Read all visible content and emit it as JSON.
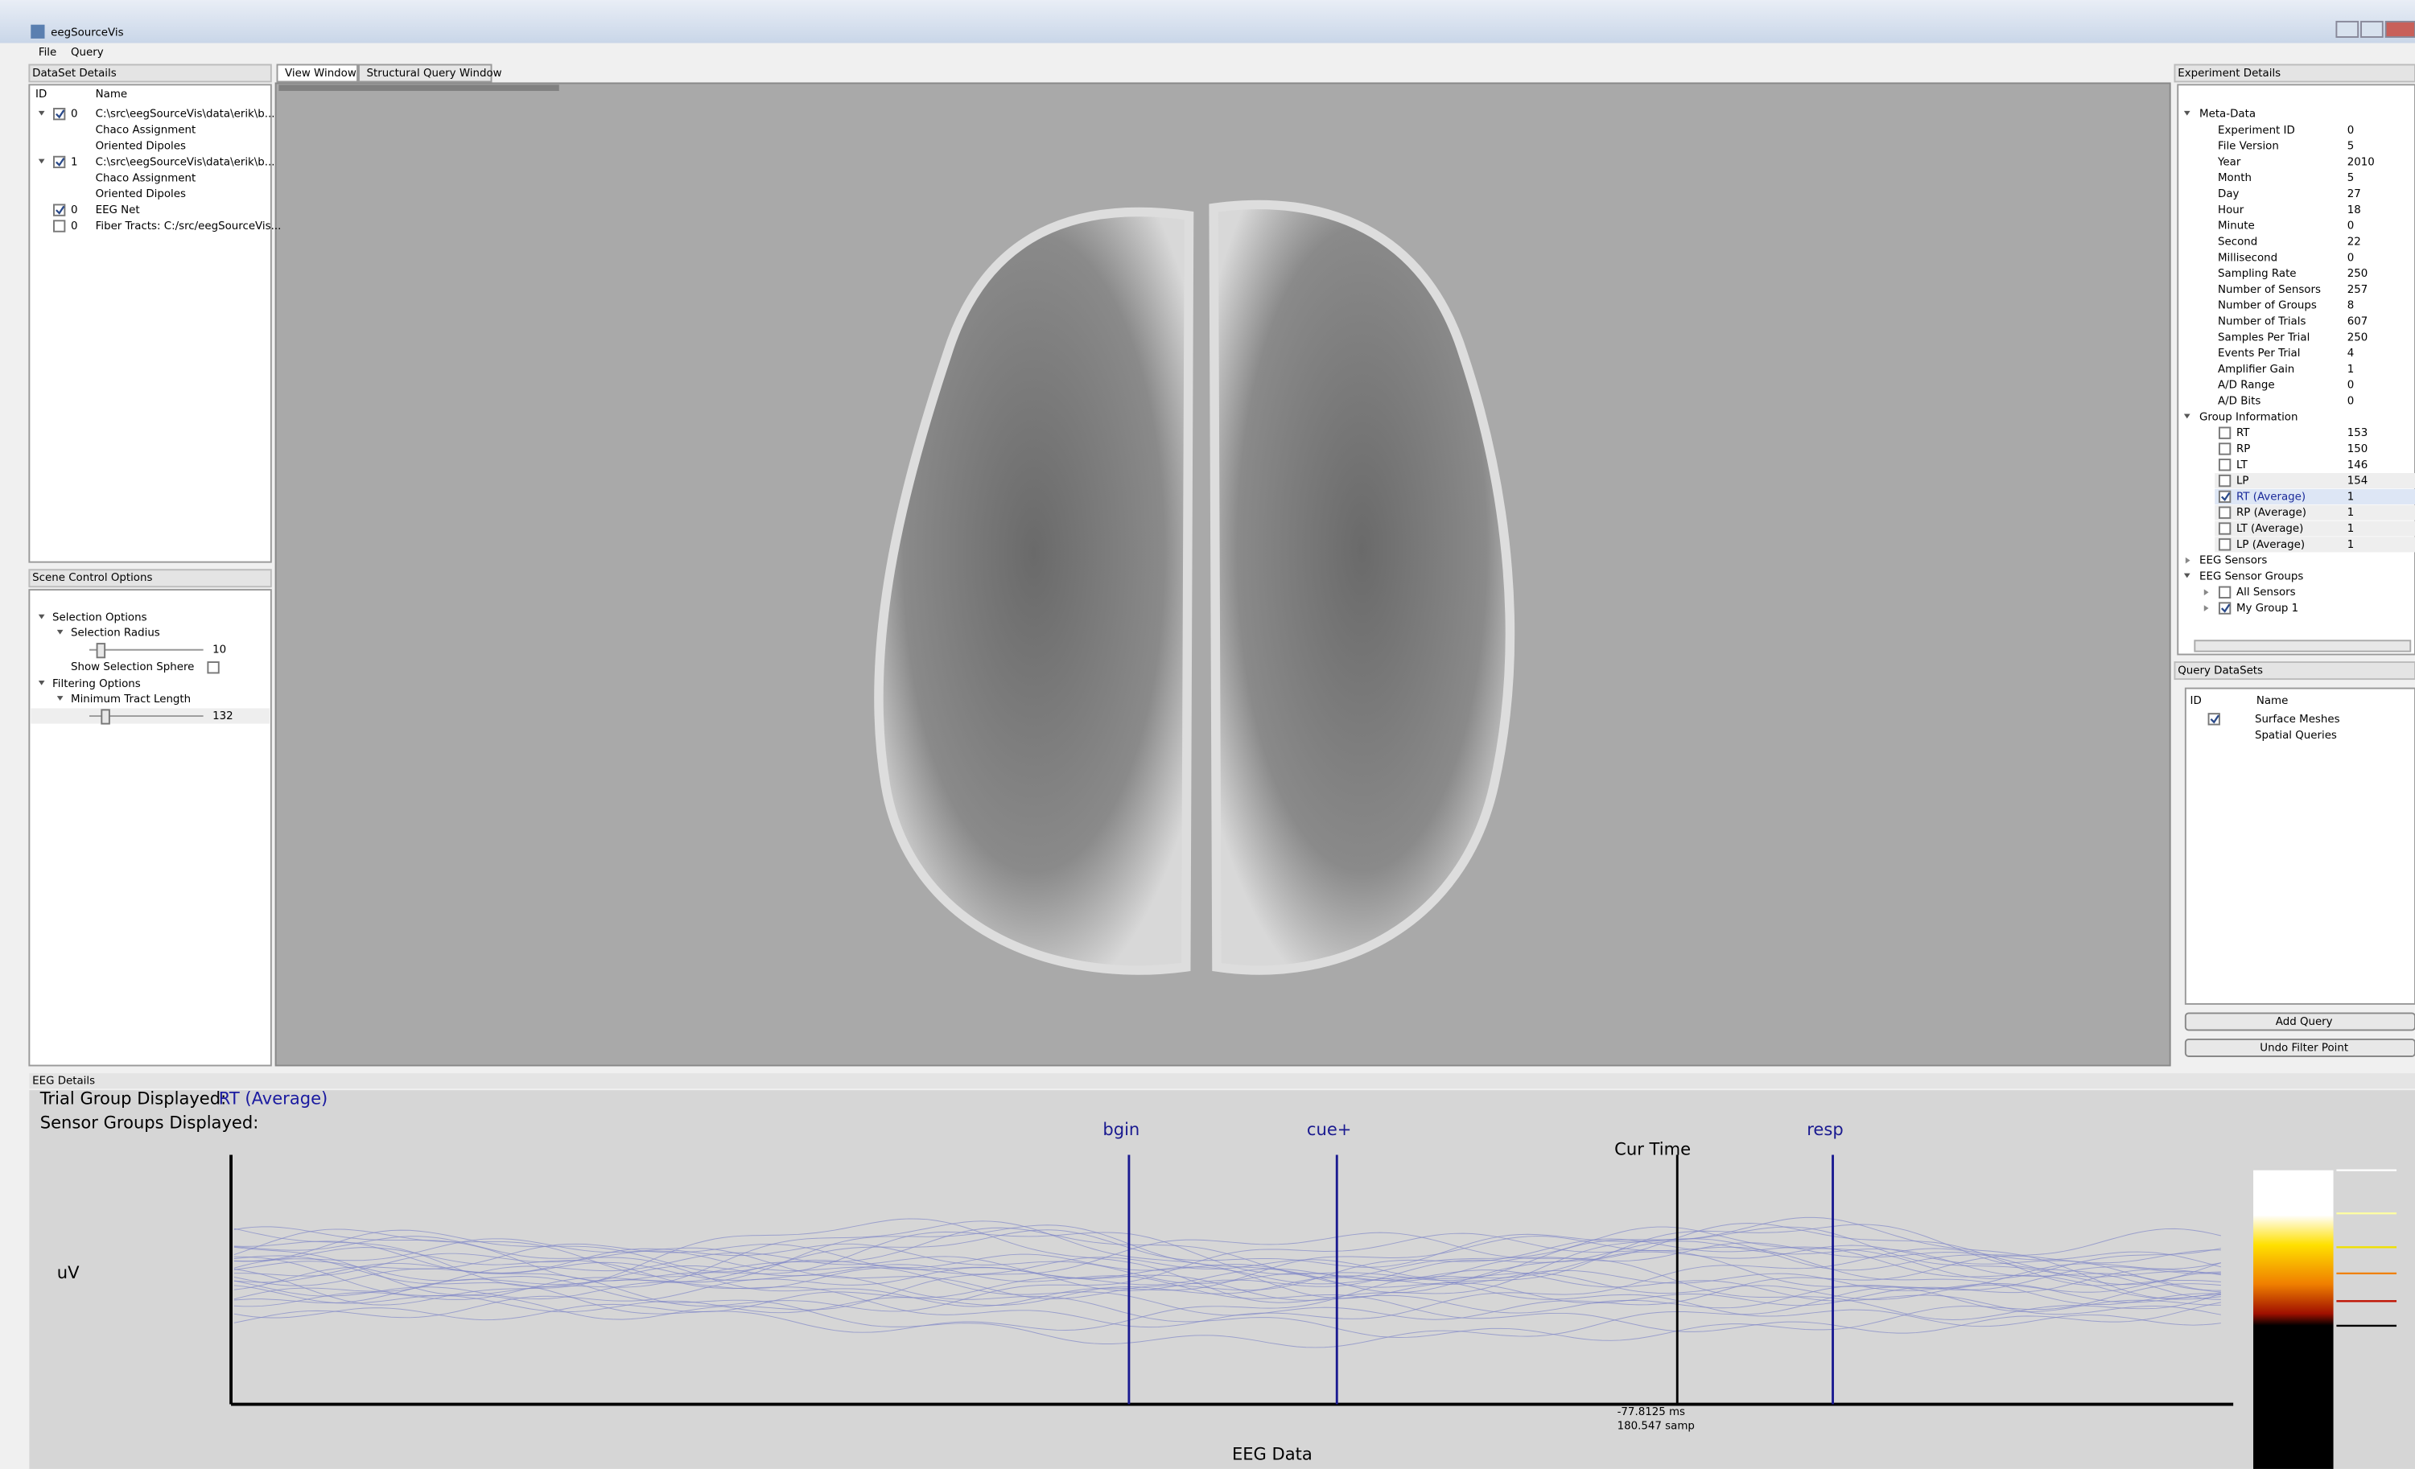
{
  "window": {
    "title": "eegSourceVis"
  },
  "menu": [
    "File",
    "Query"
  ],
  "dataset_panel": {
    "title": "DataSet Details",
    "columns": [
      "ID",
      "Name"
    ],
    "rows": [
      {
        "id": "0",
        "name": "C:\\src\\eegSourceVis\\data\\erik\\b...",
        "checked": true,
        "expander": true
      },
      {
        "name": "Chaco Assignment"
      },
      {
        "name": "Oriented Dipoles"
      },
      {
        "id": "1",
        "name": "C:\\src\\eegSourceVis\\data\\erik\\b...",
        "checked": true,
        "expander": true
      },
      {
        "name": "Chaco Assignment"
      },
      {
        "name": "Oriented Dipoles"
      },
      {
        "id": "0",
        "name": "EEG Net",
        "checked": true
      },
      {
        "id": "0",
        "name": "Fiber Tracts: C:/src/eegSourceVis...",
        "checked": false
      }
    ]
  },
  "scene_panel": {
    "title": "Scene Control Options",
    "selection_options": "Selection Options",
    "selection_radius": "Selection Radius",
    "radius_value": "10",
    "show_sphere": "Show Selection Sphere",
    "filtering_options": "Filtering Options",
    "min_tract": "Minimum Tract Length",
    "tract_value": "132"
  },
  "tabs": [
    "View Window",
    "Structural Query Window"
  ],
  "experiment_panel": {
    "title": "Experiment Details",
    "meta": "Meta-Data",
    "fields": [
      [
        "Experiment ID",
        "0"
      ],
      [
        "File Version",
        "5"
      ],
      [
        "Year",
        "2010"
      ],
      [
        "Month",
        "5"
      ],
      [
        "Day",
        "27"
      ],
      [
        "Hour",
        "18"
      ],
      [
        "Minute",
        "0"
      ],
      [
        "Second",
        "22"
      ],
      [
        "Millisecond",
        "0"
      ],
      [
        "Sampling Rate",
        "250"
      ],
      [
        "Number of Sensors",
        "257"
      ],
      [
        "Number of Groups",
        "8"
      ],
      [
        "Number of Trials",
        "607"
      ],
      [
        "Samples Per Trial",
        "250"
      ],
      [
        "Events Per Trial",
        "4"
      ],
      [
        "Amplifier Gain",
        "1"
      ],
      [
        "A/D Range",
        "0"
      ],
      [
        "A/D Bits",
        "0"
      ]
    ],
    "group_info": "Group Information",
    "groups": [
      {
        "name": "RT",
        "value": "153",
        "checked": false
      },
      {
        "name": "RP",
        "value": "150",
        "checked": false
      },
      {
        "name": "LT",
        "value": "146",
        "checked": false
      },
      {
        "name": "LP",
        "value": "154",
        "checked": false
      },
      {
        "name": "RT (Average)",
        "value": "1",
        "checked": true
      },
      {
        "name": "RP (Average)",
        "value": "1",
        "checked": false
      },
      {
        "name": "LT (Average)",
        "value": "1",
        "checked": false
      },
      {
        "name": "LP (Average)",
        "value": "1",
        "checked": false
      }
    ],
    "sensors": "EEG Sensors",
    "sensor_groups": "EEG Sensor Groups",
    "sensor_group_items": [
      {
        "name": "All Sensors",
        "checked": false
      },
      {
        "name": "My Group 1",
        "checked": true
      }
    ]
  },
  "query_panel": {
    "title": "Query DataSets",
    "columns": [
      "ID",
      "Name"
    ],
    "rows": [
      {
        "name": "Surface Meshes",
        "checked": true
      },
      {
        "name": "Spatial Queries"
      }
    ],
    "buttons": [
      "Add Query",
      "Undo Filter Point"
    ]
  },
  "eeg_panel": {
    "title": "EEG Details",
    "trial_label": "Trial Group Displayed:",
    "trial_value": "RT (Average)",
    "sensor_label": "Sensor Groups Displayed:",
    "y_label": "uV",
    "events": [
      "bgin",
      "cue+",
      "resp"
    ],
    "cur_time": "Cur Time",
    "cur_ms": "-77.8125 ms",
    "cur_samp": "180.547 samp",
    "x_label": "EEG Data"
  }
}
